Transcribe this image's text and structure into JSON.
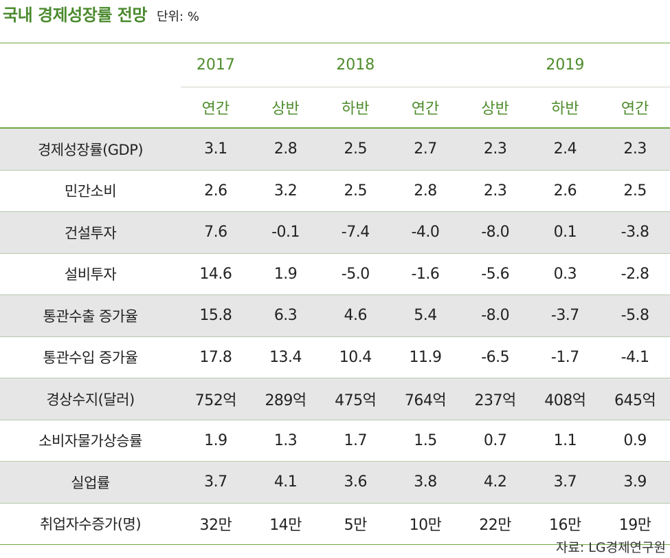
{
  "title": "국내 경제성장률 전망",
  "unit": "단위: %",
  "source": "자료: LG경제연구원",
  "chart_data": {
    "type": "table",
    "years": [
      {
        "label": "2017",
        "span": 1
      },
      {
        "label": "2018",
        "span": 3
      },
      {
        "label": "2019",
        "span": 3
      }
    ],
    "columns": [
      "연간",
      "상반",
      "하반",
      "연간",
      "상반",
      "하반",
      "연간"
    ],
    "rows": [
      {
        "label": "경제성장률(GDP)",
        "values": [
          "3.1",
          "2.8",
          "2.5",
          "2.7",
          "2.3",
          "2.4",
          "2.3"
        ]
      },
      {
        "label": "민간소비",
        "values": [
          "2.6",
          "3.2",
          "2.5",
          "2.8",
          "2.3",
          "2.6",
          "2.5"
        ]
      },
      {
        "label": "건설투자",
        "values": [
          "7.6",
          "-0.1",
          "-7.4",
          "-4.0",
          "-8.0",
          "0.1",
          "-3.8"
        ]
      },
      {
        "label": "설비투자",
        "values": [
          "14.6",
          "1.9",
          "-5.0",
          "-1.6",
          "-5.6",
          "0.3",
          "-2.8"
        ]
      },
      {
        "label": "통관수출 증가율",
        "values": [
          "15.8",
          "6.3",
          "4.6",
          "5.4",
          "-8.0",
          "-3.7",
          "-5.8"
        ]
      },
      {
        "label": "통관수입 증가율",
        "values": [
          "17.8",
          "13.4",
          "10.4",
          "11.9",
          "-6.5",
          "-1.7",
          "-4.1"
        ]
      },
      {
        "label": "경상수지(달러)",
        "values": [
          "752억",
          "289억",
          "475억",
          "764억",
          "237억",
          "408억",
          "645억"
        ]
      },
      {
        "label": "소비자물가상승률",
        "values": [
          "1.9",
          "1.3",
          "1.7",
          "1.5",
          "0.7",
          "1.1",
          "0.9"
        ]
      },
      {
        "label": "실업률",
        "values": [
          "3.7",
          "4.1",
          "3.6",
          "3.8",
          "4.2",
          "3.7",
          "3.9"
        ]
      },
      {
        "label": "취업자수증가(명)",
        "values": [
          "32만",
          "14만",
          "5만",
          "10만",
          "22만",
          "16만",
          "19만"
        ]
      }
    ]
  },
  "colors": {
    "accent": "#4e8c2c",
    "title": "#4a8a2e",
    "rule": "#6fa843",
    "shade": "#e6e6e6"
  }
}
